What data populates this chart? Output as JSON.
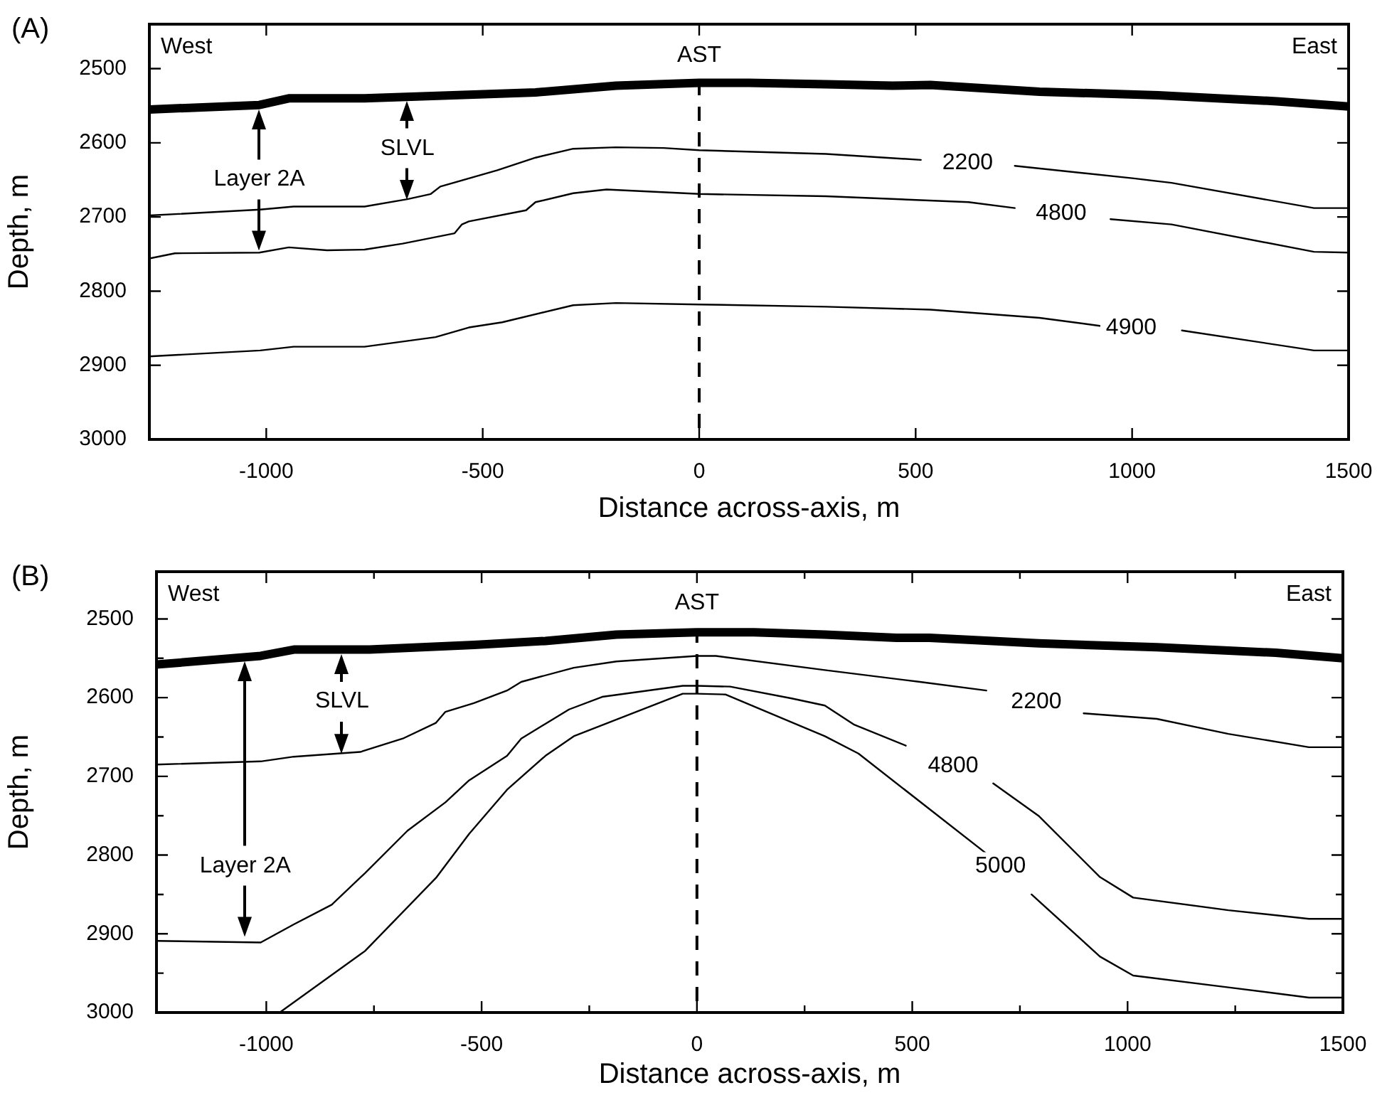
{
  "chart_data": [
    {
      "type": "line",
      "title": "(A)",
      "xlabel": "Distance across-axis, m",
      "ylabel": "Depth, m",
      "xlim": [
        -1270,
        1500
      ],
      "xticks": [
        -1000,
        -500,
        0,
        500,
        1000,
        1500
      ],
      "ylim": [
        3000,
        2440
      ],
      "yticks": [
        2500,
        2600,
        2700,
        2800,
        2900,
        3000
      ],
      "series": [
        {
          "color": "#000000",
          "x": [
            -1270,
            -1016,
            -948,
            -773,
            -521,
            -378,
            -192,
            0,
            115,
            293,
            446,
            534,
            786,
            1060,
            1334,
            1500
          ],
          "values": [
            2555,
            2549,
            2540,
            2540,
            2535,
            2532,
            2523,
            2519,
            2519,
            2521,
            2523,
            2522,
            2531,
            2536,
            2544,
            2551
          ]
        },
        {
          "name": "2200",
          "color": "#000000",
          "x": [
            -1270,
            -1014,
            -937,
            -773,
            -674,
            -620,
            -598,
            -466,
            -378,
            -291,
            -192,
            -82,
            0,
            293,
            512,
            620,
            729,
            1004,
            1091,
            1420,
            1500
          ],
          "values": [
            2698,
            2690,
            2686,
            2686,
            2676,
            2669,
            2659,
            2637,
            2620,
            2608,
            2606,
            2607,
            2610,
            2615,
            2623,
            null,
            2631,
            2648,
            2654,
            2688,
            2688
          ]
        },
        {
          "name": "4800",
          "color": "#000000",
          "x": [
            -1270,
            -1211,
            -1016,
            -948,
            -860,
            -773,
            -685,
            -565,
            -548,
            -532,
            -400,
            -378,
            -291,
            -214,
            0,
            293,
            622,
            729,
            836,
            950,
            1091,
            1420,
            1500
          ],
          "values": [
            2756,
            2749,
            2748,
            2741,
            2745,
            2744,
            2736,
            2722,
            2710,
            2706,
            2691,
            2680,
            2668,
            2663,
            2669,
            2672,
            2680,
            2688,
            null,
            2703,
            2710,
            2747,
            2748
          ]
        },
        {
          "name": "4900",
          "color": "#000000",
          "x": [
            -1270,
            -1014,
            -937,
            -773,
            -609,
            -532,
            -455,
            -291,
            -192,
            0,
            293,
            534,
            786,
            928,
            998,
            1115,
            1420,
            1500
          ],
          "values": [
            2888,
            2880,
            2875,
            2875,
            2862,
            2849,
            2842,
            2819,
            2816,
            2818,
            2821,
            2825,
            2836,
            2847,
            null,
            2853,
            2880,
            2880
          ]
        }
      ],
      "ref_lines": [
        {
          "axis": "x",
          "value": 0,
          "label": "AST",
          "line_style": "dashed"
        }
      ],
      "annotations": [
        "West",
        "East",
        {
          "text": "Layer 2A",
          "x": -1016,
          "y": 2745
        },
        {
          "text": "SLVL",
          "x": -674,
          "y": 2677
        }
      ]
    },
    {
      "type": "line",
      "title": "(B)",
      "xlabel": "Distance across-axis, m",
      "ylabel": "Depth, m",
      "xlim": [
        -1255,
        1500
      ],
      "xticks": [
        -1000,
        {
          "value": -750,
          "label": null
        },
        -500,
        {
          "value": -250,
          "label": null
        },
        0,
        {
          "value": 250,
          "label": null
        },
        500,
        {
          "value": 750,
          "label": null
        },
        1000,
        {
          "value": 1250,
          "label": null
        },
        1500
      ],
      "ylim": [
        3000,
        2440
      ],
      "yticks": [
        2500,
        {
          "value": 2550,
          "label": null
        },
        2600,
        {
          "value": 2650,
          "label": null
        },
        2700,
        {
          "value": 2750,
          "label": null
        },
        2800,
        {
          "value": 2850,
          "label": null
        },
        2900,
        {
          "value": 2950,
          "label": null
        },
        3000
      ],
      "series": [
        {
          "color": "#000000",
          "x": [
            -1255,
            -1013,
            -936,
            -760,
            -518,
            -352,
            -187,
            0,
            132,
            297,
            463,
            540,
            793,
            1068,
            1344,
            1500
          ],
          "values": [
            2558,
            2547,
            2539,
            2539,
            2533,
            2528,
            2520,
            2517,
            2517,
            2520,
            2524,
            2524,
            2531,
            2536,
            2543,
            2550
          ]
        },
        {
          "name": "2200",
          "color": "#000000",
          "x": [
            -1255,
            -1013,
            -936,
            -782,
            -683,
            -606,
            -584,
            -518,
            -441,
            -408,
            -286,
            -187,
            0,
            44,
            297,
            518,
            672,
            788,
            898,
            1068,
            1234,
            1421,
            1500
          ],
          "values": [
            2685,
            2681,
            2675,
            2669,
            2652,
            2632,
            2618,
            2607,
            2591,
            2580,
            2562,
            2554,
            2547,
            2547,
            2565,
            2580,
            2591,
            null,
            2620,
            2627,
            2646,
            2663,
            2663
          ]
        },
        {
          "name": "4800",
          "color": "#000000",
          "x": [
            -1255,
            -1013,
            -936,
            -848,
            -771,
            -672,
            -584,
            -529,
            -441,
            -408,
            -297,
            -220,
            -33,
            0,
            77,
            220,
            297,
            364,
            485,
            595,
            688,
            793,
            936,
            1013,
            1234,
            1421,
            1500
          ],
          "values": [
            2909,
            2911,
            2888,
            2863,
            2823,
            2769,
            2733,
            2705,
            2674,
            2652,
            2615,
            2599,
            2585,
            2585,
            2586,
            2601,
            2610,
            2634,
            2661,
            null,
            2709,
            2750,
            2828,
            2854,
            2870,
            2881,
            2881
          ]
        },
        {
          "name": "5000",
          "color": "#000000",
          "x": [
            -969,
            -771,
            -606,
            -529,
            -441,
            -352,
            -286,
            -33,
            0,
            66,
            297,
            375,
            672,
            705,
            777,
            936,
            1013,
            1234,
            1421,
            1500
          ],
          "values": [
            3000,
            2922,
            2829,
            2773,
            2717,
            2674,
            2649,
            2595,
            2595,
            2596,
            2649,
            2671,
            2798,
            null,
            2850,
            2929,
            2953,
            2968,
            2981,
            2981
          ]
        }
      ],
      "ref_lines": [
        {
          "axis": "x",
          "value": 0,
          "label": "AST",
          "line_style": "dashed"
        }
      ],
      "annotations": [
        "West",
        "East",
        {
          "text": "Layer 2A",
          "x": -1049,
          "y": 2904
        },
        {
          "text": "SLVL",
          "x": -824,
          "y": 2671
        }
      ]
    }
  ]
}
